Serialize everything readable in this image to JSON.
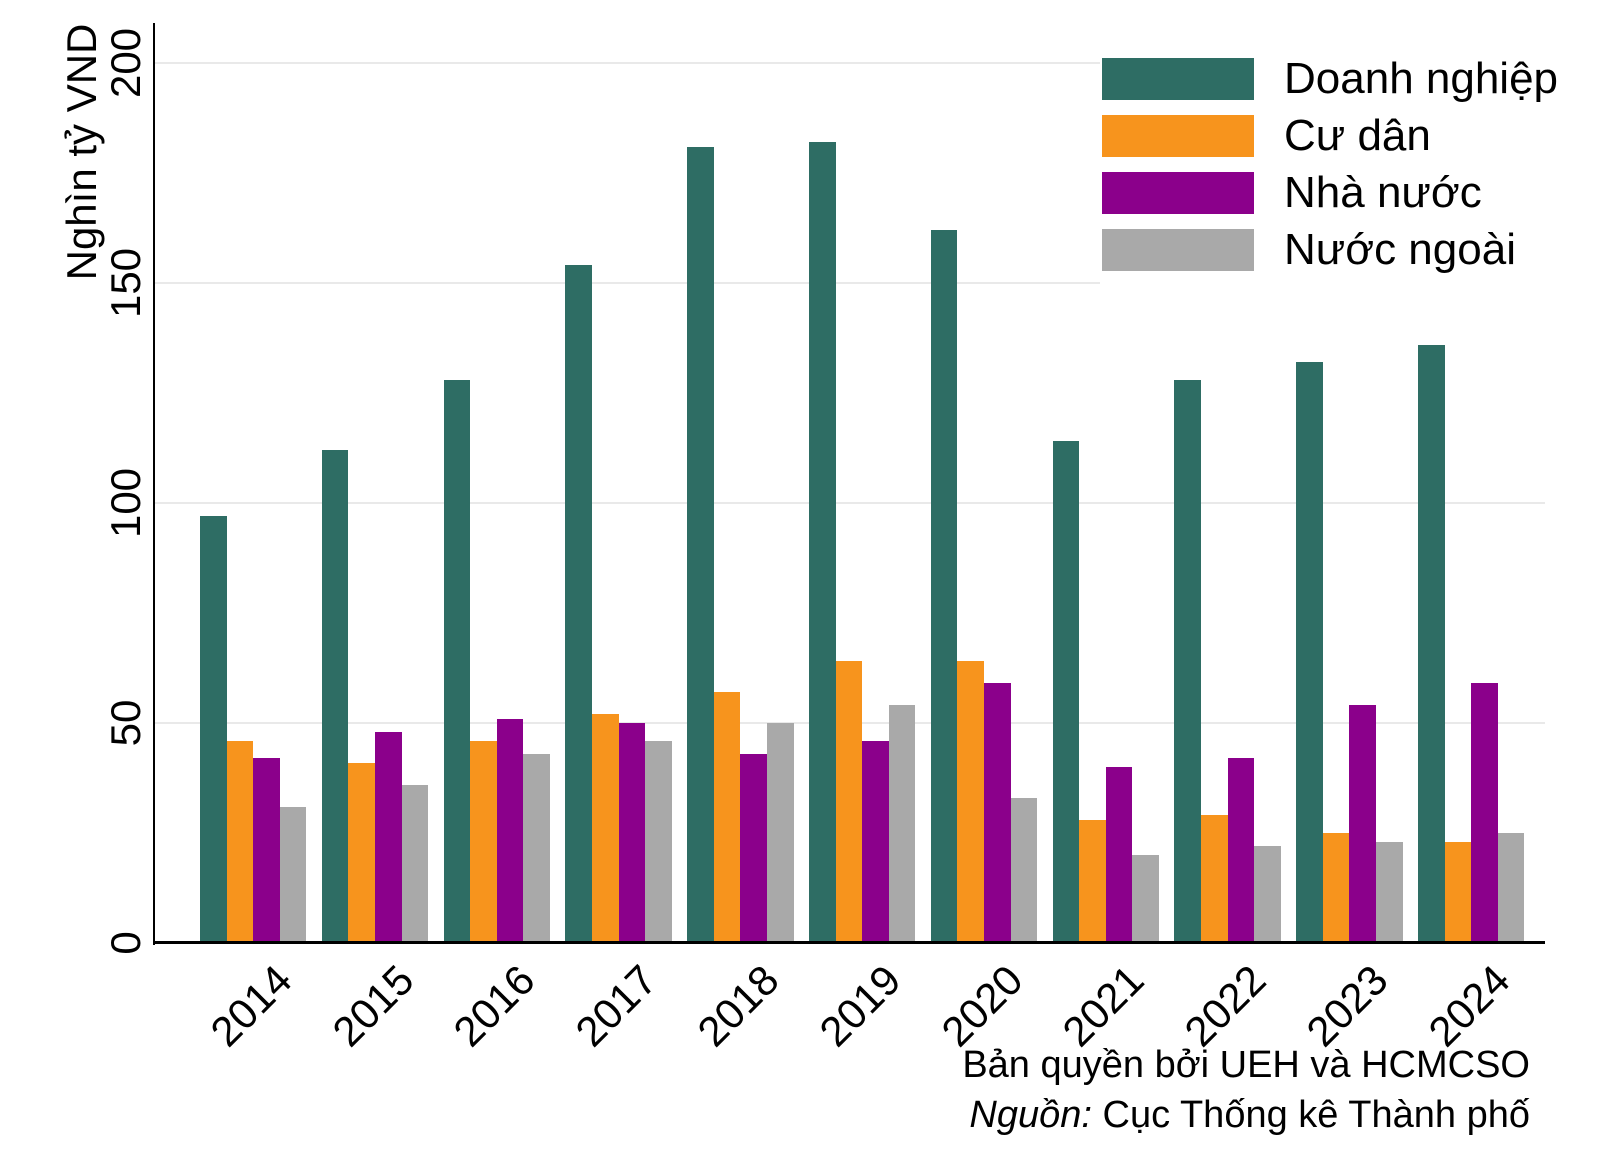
{
  "chart_data": {
    "type": "bar",
    "title": "",
    "ylabel": "Nghìn tỷ VND",
    "xlabel": "",
    "categories": [
      "2014",
      "2015",
      "2016",
      "2017",
      "2018",
      "2019",
      "2020",
      "2021",
      "2022",
      "2023",
      "2024"
    ],
    "series": [
      {
        "name": "Doanh nghiệp",
        "color": "#2e6d64",
        "values": [
          97,
          112,
          128,
          154,
          181,
          182,
          162,
          114,
          128,
          132,
          136
        ]
      },
      {
        "name": "Cư dân",
        "color": "#f7941d",
        "values": [
          46,
          41,
          46,
          52,
          57,
          64,
          64,
          28,
          29,
          25,
          23
        ]
      },
      {
        "name": "Nhà nước",
        "color": "#8b008b",
        "values": [
          42,
          48,
          51,
          50,
          43,
          46,
          59,
          40,
          42,
          54,
          59
        ]
      },
      {
        "name": "Nước ngoài",
        "color": "#a9a9a9",
        "values": [
          31,
          36,
          43,
          46,
          50,
          54,
          33,
          20,
          22,
          23,
          25
        ]
      }
    ],
    "yticks": [
      0,
      50,
      100,
      150,
      200
    ],
    "ylim": [
      0,
      209
    ],
    "grid": true,
    "legend_position": "top-right",
    "x_tick_rotation_deg": 45,
    "y_tick_rotation_deg": 90
  },
  "footer": {
    "line1": "Bản quyền bởi UEH và HCMCSO",
    "source_label": "Nguồn:",
    "source_text": " Cục Thống kê Thành phố"
  },
  "colors": {
    "background": "#ffffff",
    "axis": "#000000",
    "gridline": "#e9e9e9"
  }
}
